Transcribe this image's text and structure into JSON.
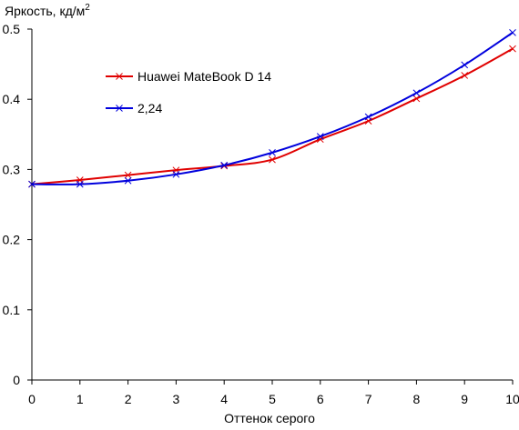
{
  "chart_data": {
    "type": "line",
    "title": "",
    "ylabel": "Яркость, кд/м",
    "ylabel_sup": "2",
    "xlabel": "Оттенок серого",
    "xlim": [
      0,
      10
    ],
    "ylim": [
      0,
      0.5
    ],
    "x": [
      0,
      1,
      2,
      3,
      4,
      5,
      6,
      7,
      8,
      9,
      10
    ],
    "x_tick_labels": [
      "0",
      "1",
      "2",
      "3",
      "4",
      "5",
      "6",
      "7",
      "8",
      "9",
      "10"
    ],
    "y_ticks": [
      0,
      0.1,
      0.2,
      0.3,
      0.4,
      0.5
    ],
    "y_tick_labels": [
      "0",
      "0.1",
      "0.2",
      "0.3",
      "0.4",
      "0.5"
    ],
    "grid": false,
    "legend_position": "top-left",
    "series": [
      {
        "name": "Huawei MateBook D 14",
        "color": "#e00000",
        "marker": "x",
        "values": [
          0.279,
          0.285,
          0.292,
          0.299,
          0.305,
          0.314,
          0.343,
          0.369,
          0.401,
          0.434,
          0.472
        ]
      },
      {
        "name": "2,24",
        "color": "#0000dd",
        "marker": "x",
        "values": [
          0.279,
          0.279,
          0.284,
          0.293,
          0.306,
          0.324,
          0.347,
          0.375,
          0.409,
          0.449,
          0.495
        ]
      }
    ]
  }
}
